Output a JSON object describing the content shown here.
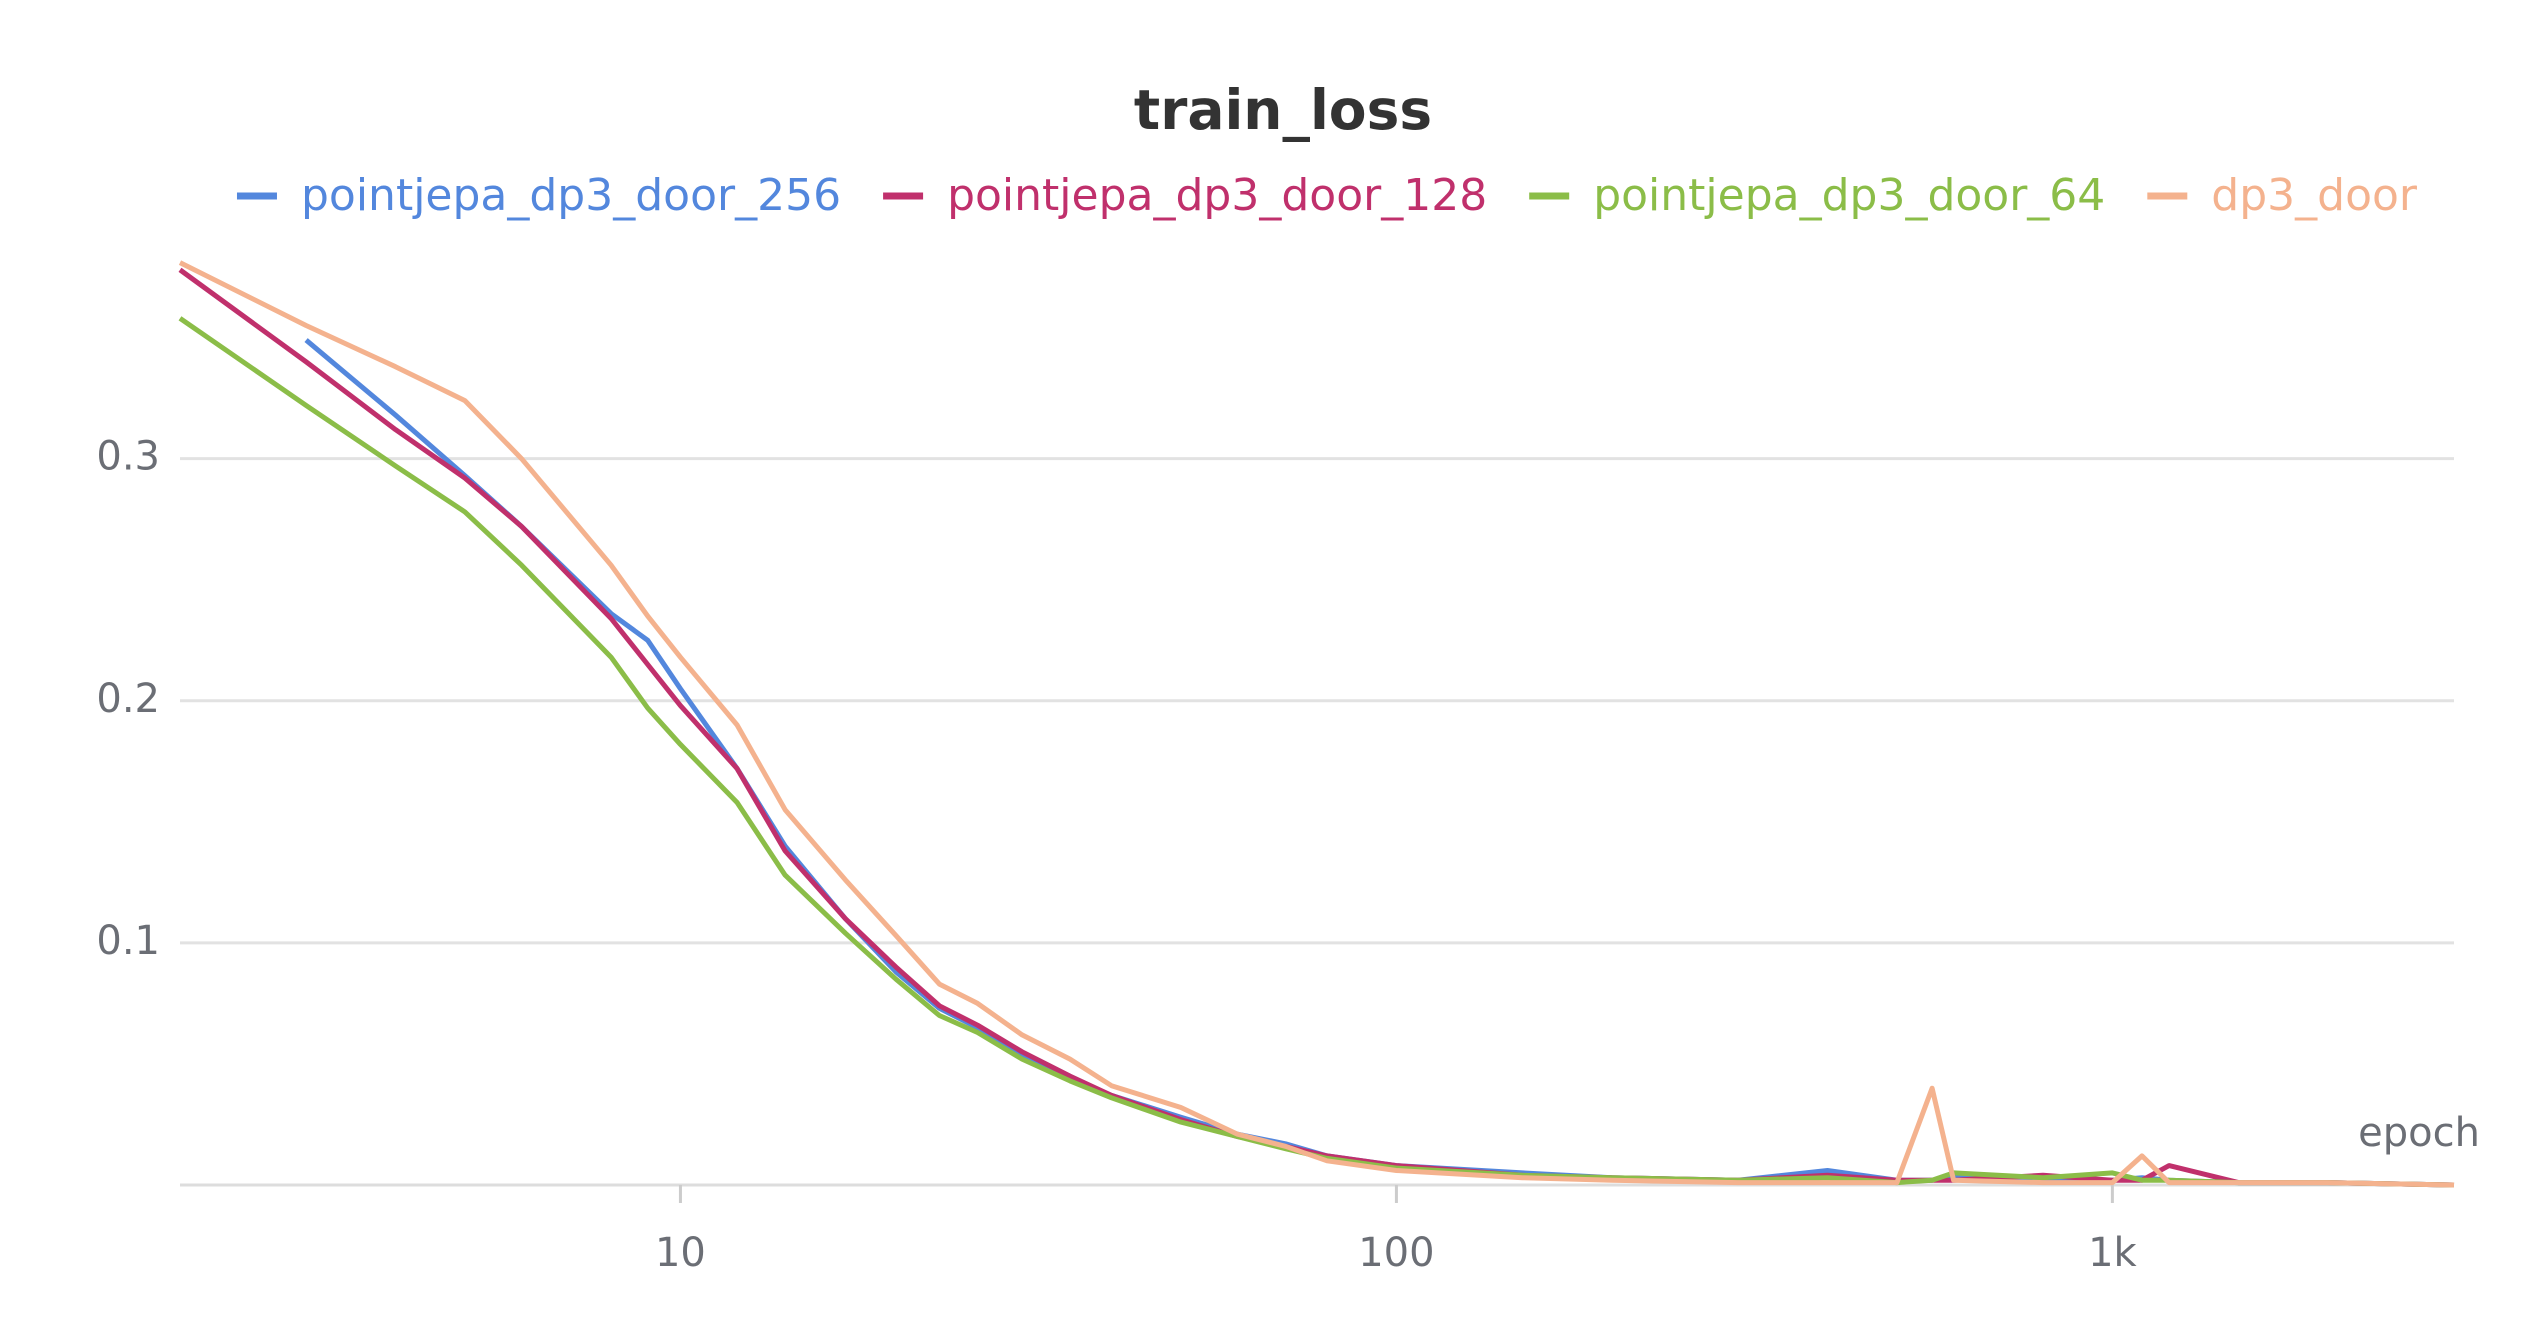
{
  "chart_data": {
    "type": "line",
    "title": "train_loss",
    "x_label": "epoch",
    "xscale": "log",
    "x": [
      2,
      3,
      4,
      5,
      6,
      8,
      9,
      10,
      12,
      14,
      17,
      20,
      23,
      26,
      30,
      35,
      40,
      50,
      60,
      70,
      80,
      100,
      150,
      200,
      300,
      400,
      500,
      560,
      600,
      800,
      1000,
      1100,
      1200,
      1500,
      2000,
      3000
    ],
    "series": [
      {
        "name": "pointjepa_dp3_door_256",
        "color": "#5387dd",
        "values": [
          null,
          0.349,
          0.318,
          0.293,
          0.272,
          0.236,
          0.225,
          0.205,
          0.172,
          0.14,
          0.11,
          0.088,
          0.073,
          0.065,
          0.053,
          0.044,
          0.037,
          0.028,
          0.021,
          0.017,
          0.012,
          0.008,
          0.005,
          0.003,
          0.002,
          0.006,
          0.002,
          0.002,
          0.003,
          0.002,
          0.002,
          0.003,
          0.002,
          0.001,
          0.001,
          0.0
        ]
      },
      {
        "name": "pointjepa_dp3_door_128",
        "color": "#c0306c",
        "values": [
          0.378,
          0.34,
          0.312,
          0.292,
          0.272,
          0.234,
          0.215,
          0.198,
          0.172,
          0.138,
          0.11,
          0.09,
          0.074,
          0.066,
          0.055,
          0.045,
          0.037,
          0.027,
          0.02,
          0.016,
          0.012,
          0.008,
          0.004,
          0.003,
          0.002,
          0.004,
          0.002,
          0.002,
          0.002,
          0.004,
          0.002,
          0.002,
          0.008,
          0.001,
          0.001,
          0.0
        ]
      },
      {
        "name": "pointjepa_dp3_door_64",
        "color": "#8bbd48",
        "values": [
          0.358,
          0.322,
          0.297,
          0.278,
          0.256,
          0.218,
          0.197,
          0.182,
          0.158,
          0.128,
          0.104,
          0.085,
          0.07,
          0.063,
          0.052,
          0.043,
          0.036,
          0.026,
          0.02,
          0.015,
          0.011,
          0.007,
          0.004,
          0.003,
          0.002,
          0.003,
          0.001,
          0.002,
          0.005,
          0.003,
          0.005,
          0.002,
          0.002,
          0.001,
          0.001,
          0.0
        ]
      },
      {
        "name": "dp3_door",
        "color": "#f4b28e",
        "values": [
          0.381,
          0.355,
          0.338,
          0.324,
          0.3,
          0.256,
          0.235,
          0.218,
          0.19,
          0.155,
          0.126,
          0.103,
          0.083,
          0.075,
          0.062,
          0.052,
          0.041,
          0.032,
          0.021,
          0.016,
          0.01,
          0.006,
          0.003,
          0.002,
          0.001,
          0.001,
          0.001,
          0.04,
          0.002,
          0.001,
          0.001,
          0.012,
          0.001,
          0.001,
          0.001,
          0.0
        ]
      }
    ],
    "xlim": [
      2,
      3000
    ],
    "ylim": [
      0,
      0.38
    ],
    "xticks": [
      10,
      100,
      {
        "value": 1000,
        "label": "1k"
      }
    ],
    "yticks": [
      0.1,
      0.2,
      0.3
    ],
    "grid": true
  }
}
